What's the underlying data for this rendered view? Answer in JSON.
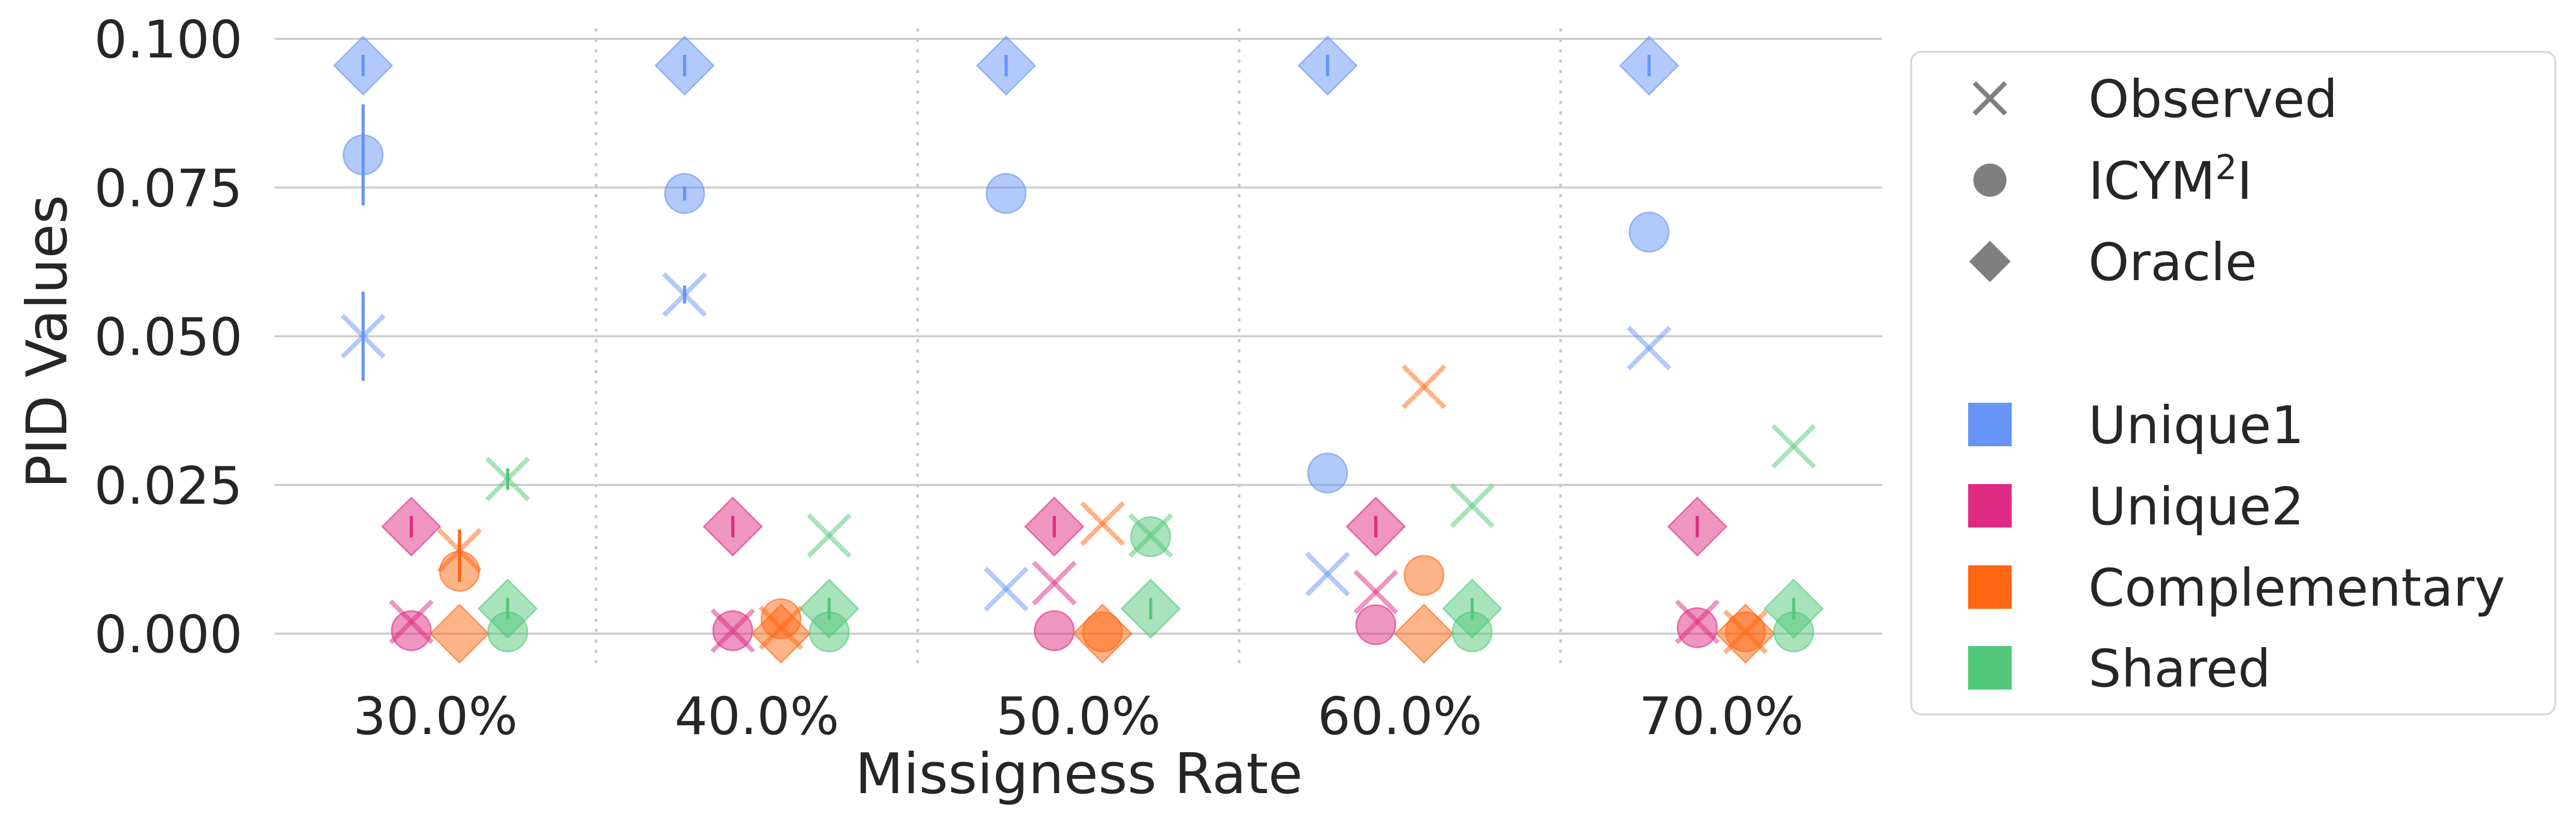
{
  "chart_data": {
    "type": "scatter",
    "title": "",
    "xlabel": "Missigness Rate",
    "ylabel": "PID Values",
    "ylim": [
      -0.004,
      0.1015
    ],
    "yticks": [
      0.0,
      0.025,
      0.05,
      0.075,
      0.1
    ],
    "ytick_labels": [
      "0.000",
      "0.025",
      "0.050",
      "0.075",
      "0.100"
    ],
    "categories": [
      "30.0%",
      "40.0%",
      "50.0%",
      "60.0%",
      "70.0%"
    ],
    "grid": "horizontal",
    "legend_position": "outside-right",
    "legend": {
      "markers": [
        {
          "key": "observed",
          "label": "Observed",
          "shape": "x"
        },
        {
          "key": "icym2i",
          "label": "ICYM",
          "sup": "2",
          "suffix": "I",
          "shape": "circle"
        },
        {
          "key": "oracle",
          "label": "Oracle",
          "shape": "diamond"
        }
      ],
      "series": [
        {
          "key": "unique1",
          "label": "Unique1",
          "color": "#6694f7"
        },
        {
          "key": "unique2",
          "label": "Unique2",
          "color": "#dd2b83"
        },
        {
          "key": "complementary",
          "label": "Complementary",
          "color": "#ff6712"
        },
        {
          "key": "shared",
          "label": "Shared",
          "color": "#52c87a"
        }
      ]
    },
    "series": [
      {
        "name": "Unique1",
        "color": "#6694f7",
        "offset": -3,
        "observed": [
          0.05,
          0.057,
          0.0075,
          0.01,
          0.048
        ],
        "observed_err": [
          0.0075,
          0.0015,
          0,
          0,
          0
        ],
        "icym2i": [
          0.0805,
          0.074,
          0.074,
          0.027,
          0.0675
        ],
        "icym2i_err": [
          0.0085,
          0.0012,
          0,
          0,
          0
        ],
        "oracle": [
          0.0955,
          0.0955,
          0.0955,
          0.0955,
          0.0955
        ],
        "oracle_err": [
          0.0018,
          0.0018,
          0.0018,
          0.0018,
          0.0018
        ]
      },
      {
        "name": "Unique2",
        "color": "#dd2b83",
        "offset": -1,
        "observed": [
          0.002,
          0.0005,
          0.0085,
          0.007,
          0.002
        ],
        "observed_err": [
          0,
          0,
          0,
          0,
          0
        ],
        "icym2i": [
          0.0005,
          0.0005,
          0.0005,
          0.0015,
          0.001
        ],
        "icym2i_err": [
          0,
          0,
          0,
          0,
          0
        ],
        "oracle": [
          0.018,
          0.018,
          0.018,
          0.018,
          0.018
        ],
        "oracle_err": [
          0.0018,
          0.0018,
          0.0018,
          0.0018,
          0.0018
        ]
      },
      {
        "name": "Complementary",
        "color": "#ff6712",
        "offset": 1,
        "observed": [
          0.014,
          0.001,
          0.0185,
          0.0415,
          0.0003
        ],
        "observed_err": [
          0.0035,
          0,
          0,
          0,
          0
        ],
        "icym2i": [
          0.0105,
          0.0025,
          0.0003,
          0.0098,
          0.0003
        ],
        "icym2i_err": [
          0.0018,
          0,
          0,
          0,
          0
        ],
        "oracle": [
          0.0,
          0.0,
          0.0,
          0.0,
          0.0
        ],
        "oracle_err": [
          0,
          0,
          0,
          0,
          0
        ]
      },
      {
        "name": "Shared",
        "color": "#52c87a",
        "offset": 3,
        "observed": [
          0.026,
          0.0165,
          0.0165,
          0.0215,
          0.0315
        ],
        "observed_err": [
          0.0018,
          0,
          0,
          0,
          0
        ],
        "icym2i": [
          0.0003,
          0.0003,
          0.0163,
          0.0003,
          0.0003
        ],
        "icym2i_err": [
          0,
          0,
          0,
          0,
          0
        ],
        "oracle": [
          0.0042,
          0.0042,
          0.0042,
          0.0042,
          0.0042
        ],
        "oracle_err": [
          0.0018,
          0.0018,
          0.0018,
          0.0018,
          0.0018
        ]
      }
    ]
  }
}
